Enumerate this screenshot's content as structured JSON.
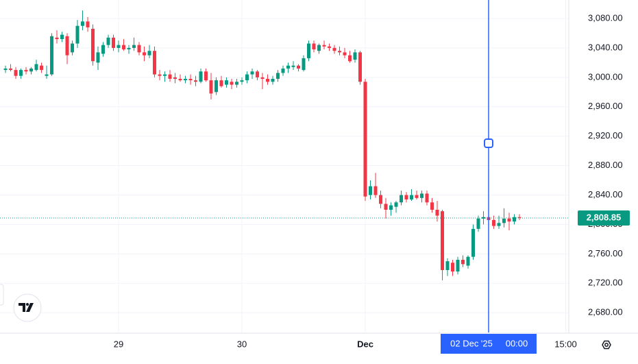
{
  "chart_data": {
    "type": "candlestick",
    "x": [
      -22,
      -21,
      -20,
      -19,
      -18,
      -17,
      -16,
      -15,
      -14,
      -13,
      -12,
      -11,
      -10,
      -9,
      -8,
      -7,
      -6,
      -5,
      -4,
      -3,
      -2,
      -1,
      0,
      1,
      2,
      3,
      4,
      5,
      6,
      7,
      8,
      9,
      10,
      11,
      12,
      13,
      14,
      15,
      16,
      17,
      18,
      19,
      20,
      21,
      22,
      23,
      24,
      25,
      26,
      27,
      28,
      29,
      30,
      31,
      32,
      33,
      34,
      35,
      36,
      37,
      38,
      39,
      40,
      41,
      42,
      43,
      44,
      45,
      46,
      47,
      48,
      49,
      50,
      51,
      52,
      53,
      54,
      55,
      56,
      57,
      58,
      59,
      60,
      61,
      62,
      63,
      64,
      65,
      66,
      67,
      68,
      69,
      70,
      71,
      72,
      73,
      74,
      75,
      76,
      77,
      78
    ],
    "open": [
      3010,
      3012,
      3010,
      3002,
      3010,
      3008,
      3010,
      3016,
      3002,
      3004,
      3054,
      3052,
      3056,
      3034,
      3046,
      3070,
      3076,
      3066,
      3020,
      3032,
      3044,
      3054,
      3040,
      3044,
      3038,
      3040,
      3044,
      3034,
      3030,
      3036,
      3004,
      3002,
      3004,
      3000,
      2998,
      2996,
      2998,
      2996,
      2994,
      3008,
      2996,
      2980,
      2996,
      2990,
      2994,
      2990,
      2994,
      2996,
      3004,
      3008,
      3000,
      2998,
      2994,
      2998,
      3006,
      3012,
      3014,
      3016,
      3010,
      3026,
      3046,
      3036,
      3044,
      3042,
      3040,
      3036,
      3034,
      3030,
      3024,
      3034,
      2994,
      2840,
      2852,
      2840,
      2828,
      2820,
      2824,
      2830,
      2840,
      2834,
      2840,
      2836,
      2842,
      2830,
      2820,
      2818,
      2738,
      2748,
      2736,
      2752,
      2744,
      2756,
      2794,
      2808,
      2810,
      2806,
      2798,
      2802,
      2808,
      2804,
      2810
    ],
    "high": [
      3016,
      3018,
      3014,
      3012,
      3014,
      3014,
      3024,
      3020,
      3016,
      3060,
      3064,
      3062,
      3060,
      3050,
      3078,
      3091,
      3082,
      3072,
      3042,
      3048,
      3058,
      3058,
      3050,
      3052,
      3044,
      3054,
      3048,
      3042,
      3044,
      3042,
      3010,
      3008,
      3010,
      3006,
      3004,
      3002,
      3004,
      3002,
      3012,
      3012,
      3006,
      3000,
      3002,
      3000,
      2998,
      2998,
      3000,
      3008,
      3012,
      3010,
      3006,
      3004,
      3002,
      3010,
      3016,
      3020,
      3022,
      3018,
      3030,
      3050,
      3050,
      3046,
      3050,
      3046,
      3044,
      3042,
      3040,
      3036,
      3038,
      3036,
      2998,
      2860,
      2870,
      2846,
      2836,
      2830,
      2832,
      2846,
      2844,
      2848,
      2846,
      2846,
      2846,
      2836,
      2832,
      2820,
      2754,
      2752,
      2756,
      2758,
      2758,
      2800,
      2812,
      2818,
      2820,
      2812,
      2812,
      2822,
      2816,
      2814,
      2814
    ],
    "low": [
      3006,
      3008,
      2998,
      2998,
      3004,
      3004,
      3008,
      3006,
      2998,
      3002,
      3046,
      3048,
      3018,
      3030,
      3040,
      3064,
      3062,
      3016,
      3010,
      3028,
      3040,
      3036,
      3034,
      3036,
      3032,
      3036,
      3030,
      3022,
      3026,
      3000,
      2996,
      2994,
      2994,
      2992,
      2994,
      2992,
      2990,
      2988,
      2992,
      2994,
      2970,
      2976,
      2986,
      2986,
      2984,
      2986,
      2990,
      2992,
      2998,
      2996,
      2984,
      2990,
      2990,
      2994,
      3002,
      3006,
      3010,
      3008,
      3008,
      3022,
      3034,
      3032,
      3038,
      3036,
      3032,
      3030,
      3026,
      3020,
      3020,
      2990,
      2832,
      2834,
      2836,
      2822,
      2808,
      2812,
      2816,
      2826,
      2830,
      2832,
      2834,
      2830,
      2826,
      2816,
      2804,
      2724,
      2730,
      2730,
      2732,
      2742,
      2740,
      2752,
      2790,
      2800,
      2798,
      2794,
      2794,
      2796,
      2792,
      2800,
      2806
    ],
    "close": [
      3012,
      3010,
      3002,
      3010,
      3008,
      3012,
      3018,
      3010,
      3004,
      3056,
      3052,
      3058,
      3030,
      3046,
      3070,
      3076,
      3068,
      3022,
      3034,
      3044,
      3054,
      3040,
      3044,
      3038,
      3040,
      3044,
      3034,
      3030,
      3036,
      3004,
      3002,
      3004,
      2998,
      2998,
      2996,
      2998,
      2996,
      2994,
      3008,
      2996,
      2978,
      2996,
      2988,
      2996,
      2990,
      2994,
      2996,
      3004,
      3008,
      3000,
      2998,
      2994,
      2998,
      3006,
      3012,
      3016,
      3016,
      3012,
      3026,
      3046,
      3038,
      3044,
      3042,
      3040,
      3036,
      3034,
      3030,
      3022,
      3034,
      2994,
      2838,
      2852,
      2840,
      2828,
      2820,
      2826,
      2830,
      2840,
      2834,
      2840,
      2836,
      2842,
      2830,
      2820,
      2812,
      2738,
      2750,
      2736,
      2752,
      2746,
      2756,
      2794,
      2808,
      2810,
      2806,
      2798,
      2802,
      2808,
      2804,
      2810,
      2808.85
    ],
    "up_color": "#089981",
    "down_color": "#f23645",
    "xlim": [
      -23.07,
      87.6
    ],
    "xticks": [
      {
        "value": 0,
        "label": "29"
      },
      {
        "value": 24,
        "label": "30"
      },
      {
        "value": 48,
        "label": "Dec"
      },
      {
        "value": 87,
        "label": "15:00"
      }
    ],
    "ylim": [
      3105.17,
      2653.16
    ],
    "yticks": [
      {
        "value": 2680,
        "label": "2,680.00"
      },
      {
        "value": 2720,
        "label": "2,720.00"
      },
      {
        "value": 2760,
        "label": "2,760.00"
      },
      {
        "value": 2800,
        "label": "2,800.00"
      },
      {
        "value": 2840,
        "label": "2,840.00"
      },
      {
        "value": 2880,
        "label": "2,880.00"
      },
      {
        "value": 2920,
        "label": "2,920.00"
      },
      {
        "value": 2960,
        "label": "2,960.00"
      },
      {
        "value": 3000,
        "label": "3,000.00"
      },
      {
        "value": 3040,
        "label": "3,040.00"
      },
      {
        "value": 3080,
        "label": "3,080.00"
      }
    ],
    "grid": true,
    "last_price": {
      "value": 2808.85,
      "label": "2,808.85"
    },
    "crosshair": {
      "x": 72,
      "date": "02 Dec '25",
      "time": "00:00",
      "color": "#2962ff"
    }
  }
}
